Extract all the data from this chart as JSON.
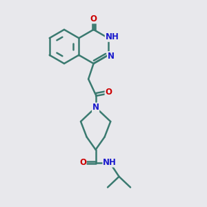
{
  "bg_color": "#e8e8ec",
  "bond_color": "#3a7a70",
  "bond_width": 1.8,
  "atom_colors": {
    "O": "#cc0000",
    "N": "#1a1acc",
    "H": "#888888"
  },
  "font_size": 8.5,
  "fig_size": [
    3.0,
    3.0
  ],
  "dpi": 100
}
